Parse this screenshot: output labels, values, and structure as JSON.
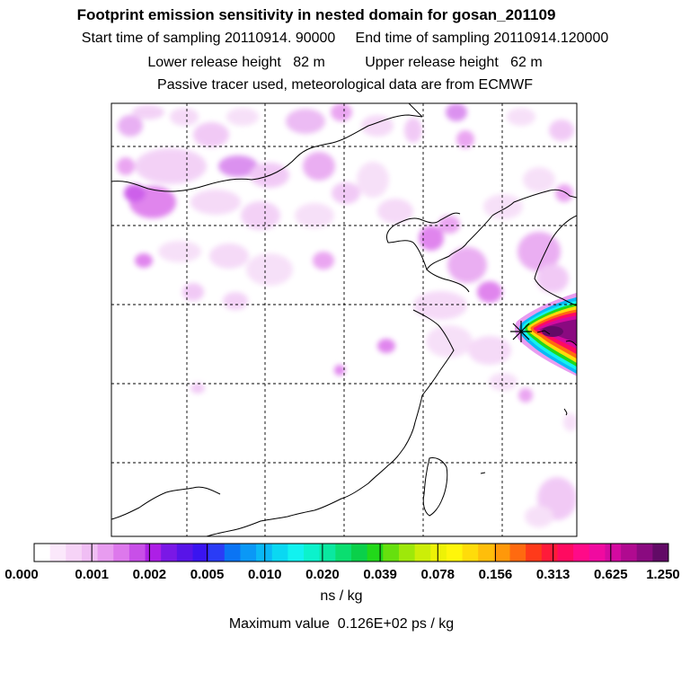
{
  "header": {
    "title": "Footprint emission sensitivity in nested domain for gosan_201109",
    "sampling_line": "Start time of sampling 20110914. 90000     End time of sampling 20110914.120000",
    "release_line": "Lower release height   82 m          Upper release height   62 m",
    "tracer_line": "Passive tracer used, meteorological data are from ECMWF"
  },
  "colorbar": {
    "tick_labels": [
      "0.000",
      "0.001",
      "0.002",
      "0.005",
      "0.010",
      "0.020",
      "0.039",
      "0.078",
      "0.156",
      "0.313",
      "0.625",
      "1.250"
    ],
    "unit": "ns / kg",
    "colors": [
      "#ffffff",
      "#fbe8fb",
      "#f6d3f7",
      "#f0bef4",
      "#e89cf0",
      "#dd78ec",
      "#c84fe8",
      "#ad1fe6",
      "#7a18e6",
      "#5814e8",
      "#3a14f0",
      "#2a3cf6",
      "#0a74f4",
      "#0a98f6",
      "#0ab8f6",
      "#0ad8f2",
      "#12f2f0",
      "#0cf2cc",
      "#0ae8a0",
      "#0ade70",
      "#0ad04a",
      "#22d81a",
      "#66e00e",
      "#9ee80a",
      "#ccee08",
      "#eef206",
      "#fff60a",
      "#ffdc0a",
      "#ffbe0a",
      "#ff980a",
      "#ff6a10",
      "#ff3a1a",
      "#ff1a3a",
      "#ff0a60",
      "#ff0a88",
      "#f00aa0",
      "#d40aa0",
      "#b00a90",
      "#8a0a80",
      "#620a66"
    ]
  },
  "footer": {
    "max_value": "Maximum value  0.126E+02 ps / kg"
  },
  "map": {
    "receptor_marker_icon": "star-cross-icon"
  }
}
